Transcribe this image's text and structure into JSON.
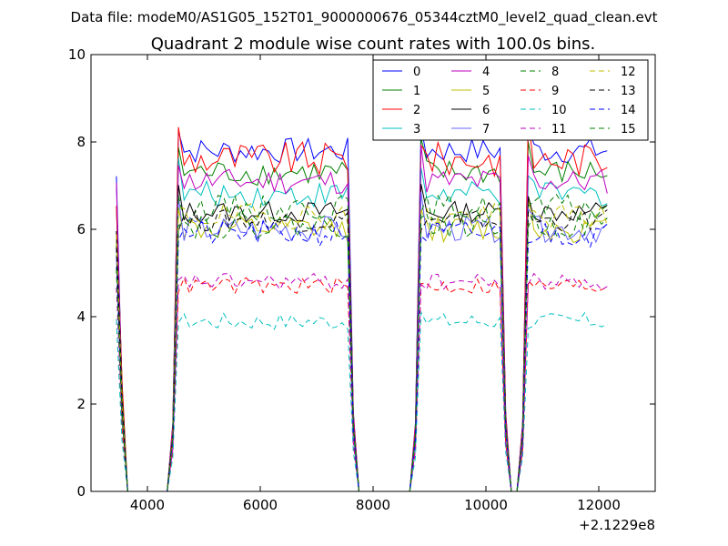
{
  "header": {
    "data_file": "Data file: modeM0/AS1G05_152T01_9000000676_05344cztM0_level2_quad_clean.evt"
  },
  "chart_data": {
    "type": "line",
    "title": "Quadrant 2 module wise count rates with 100.0s bins.",
    "xlabel": "",
    "ylabel": "",
    "xlim": [
      3000,
      13000
    ],
    "ylim": [
      0,
      10
    ],
    "x_offset_label": "+2.1229e8",
    "xticks": [
      4000,
      6000,
      8000,
      10000,
      12000
    ],
    "xtick_labels": [
      "4000",
      "6000",
      "8000",
      "10000",
      "12000"
    ],
    "yticks": [
      0,
      2,
      4,
      6,
      8,
      10
    ],
    "ytick_labels": [
      "0",
      "2",
      "4",
      "6",
      "8",
      "10"
    ],
    "segments": [
      {
        "start": 4550,
        "end": 7550
      },
      {
        "start": 8850,
        "end": 10250
      },
      {
        "start": 10750,
        "end": 12150
      }
    ],
    "series": [
      {
        "name": "0",
        "color": "#0000ff",
        "dash": "solid",
        "level": 7.8,
        "amp": 0.3
      },
      {
        "name": "1",
        "color": "#008000",
        "dash": "solid",
        "level": 7.3,
        "amp": 0.3
      },
      {
        "name": "2",
        "color": "#ff0000",
        "dash": "solid",
        "level": 7.6,
        "amp": 0.4
      },
      {
        "name": "3",
        "color": "#00bfbf",
        "dash": "solid",
        "level": 6.8,
        "amp": 0.3
      },
      {
        "name": "4",
        "color": "#bf00bf",
        "dash": "solid",
        "level": 7.1,
        "amp": 0.3
      },
      {
        "name": "5",
        "color": "#bfbf00",
        "dash": "solid",
        "level": 6.0,
        "amp": 0.3
      },
      {
        "name": "6",
        "color": "#000000",
        "dash": "solid",
        "level": 6.4,
        "amp": 0.25
      },
      {
        "name": "7",
        "color": "#6666ff",
        "dash": "solid",
        "level": 6.0,
        "amp": 0.3
      },
      {
        "name": "8",
        "color": "#008000",
        "dash": "dashed",
        "level": 6.5,
        "amp": 0.3
      },
      {
        "name": "9",
        "color": "#ff0000",
        "dash": "dashed",
        "level": 4.7,
        "amp": 0.2
      },
      {
        "name": "10",
        "color": "#00bfbf",
        "dash": "dashed",
        "level": 3.9,
        "amp": 0.2
      },
      {
        "name": "11",
        "color": "#bf00bf",
        "dash": "dashed",
        "level": 4.8,
        "amp": 0.2
      },
      {
        "name": "12",
        "color": "#bfbf00",
        "dash": "dashed",
        "level": 6.3,
        "amp": 0.3
      },
      {
        "name": "13",
        "color": "#000000",
        "dash": "dashed",
        "level": 6.2,
        "amp": 0.25
      },
      {
        "name": "14",
        "color": "#0000ff",
        "dash": "dashed",
        "level": 5.9,
        "amp": 0.3
      },
      {
        "name": "15",
        "color": "#008000",
        "dash": "dashed",
        "level": 6.1,
        "amp": 0.3
      }
    ]
  }
}
